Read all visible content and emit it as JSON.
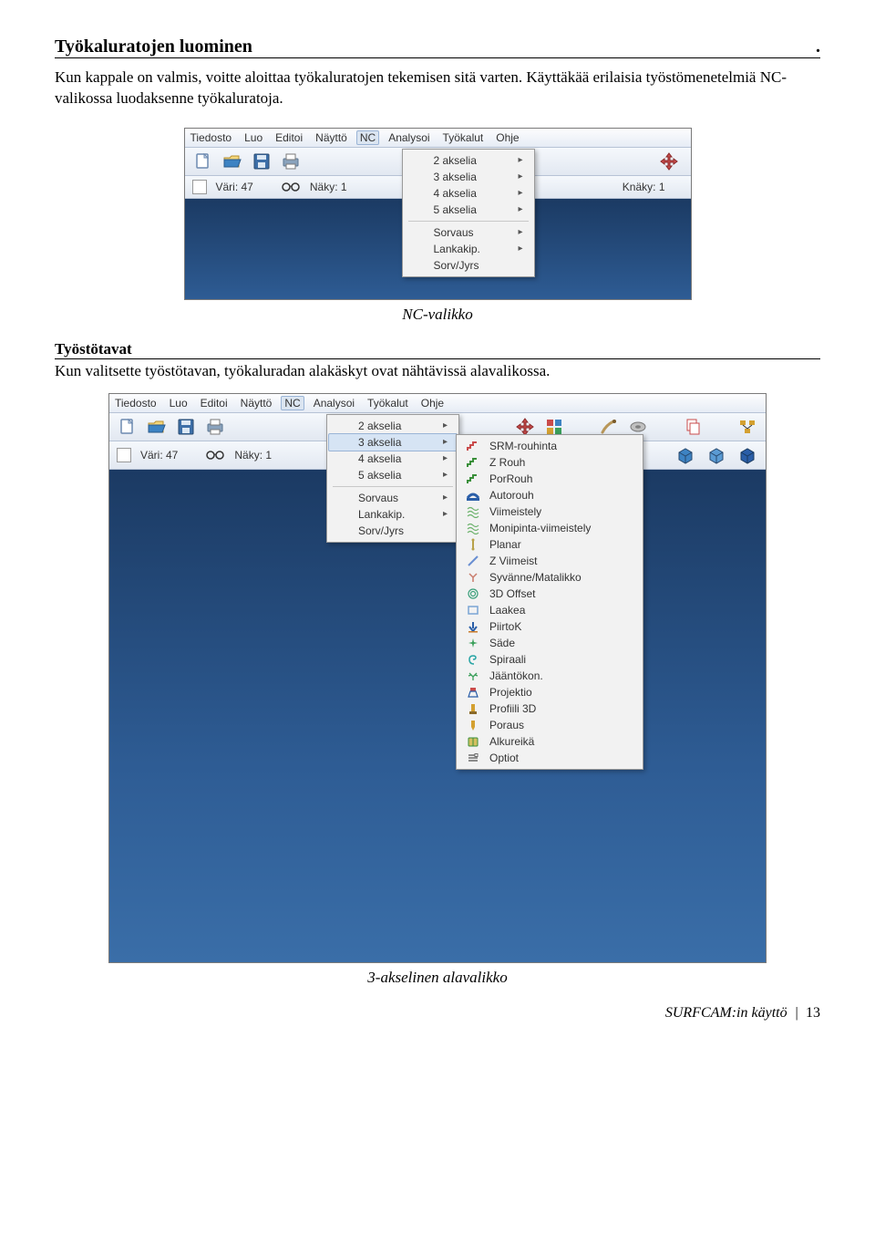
{
  "page": {
    "title": "Työkaluratojen luominen",
    "title_dot": ".",
    "body1": "Kun kappale on valmis, voitte aloittaa työkaluratojen tekemisen sitä varten. Käyttäkää erilaisia työstömenetelmiä NC-valikossa luodaksenne työkaluratoja.",
    "caption1": "NC-valikko",
    "subheading": "Työstötavat",
    "body2": "Kun valitsette työstötavan, työkaluradan alakäskyt ovat nähtävissä alavalikossa.",
    "caption2": "3-akselinen alavalikko",
    "footer_text": "SURFCAM:in käyttö",
    "footer_page": "13"
  },
  "ui": {
    "menubar": [
      "Tiedosto",
      "Luo",
      "Editoi",
      "Näyttö",
      "NC",
      "Analysoi",
      "Työkalut",
      "Ohje"
    ],
    "menu_active_index": 4,
    "toolbar2": {
      "vari_label": "Väri: 47",
      "naky_label": "Näky: 1",
      "knaky_label": "Knäky: 1"
    },
    "dropdown1": {
      "groups": [
        [
          "2 akselia",
          "3 akselia",
          "4 akselia",
          "5 akselia"
        ],
        [
          "Sorvaus",
          "Lankakip.",
          "Sorv/Jyrs"
        ]
      ],
      "arrow_items": [
        "2 akselia",
        "3 akselia",
        "4 akselia",
        "5 akselia",
        "Sorvaus",
        "Lankakip."
      ]
    },
    "dropdown2": {
      "groups": [
        [
          "2 akselia",
          "3 akselia",
          "4 akselia",
          "5 akselia"
        ],
        [
          "Sorvaus",
          "Lankakip.",
          "Sorv/Jyrs"
        ]
      ],
      "highlight": "3 akselia",
      "arrow_items": [
        "2 akselia",
        "3 akselia",
        "4 akselia",
        "5 akselia",
        "Sorvaus",
        "Lankakip."
      ]
    },
    "submenu": {
      "groups": [
        [
          {
            "label": "SRM-rouhinta",
            "icon": "steps",
            "color": "#c94b4b"
          },
          {
            "label": "Z Rouh",
            "icon": "steps",
            "color": "#3a8f3a"
          },
          {
            "label": "PorRouh",
            "icon": "steps",
            "color": "#3a8f3a"
          },
          {
            "label": "Autorouh",
            "icon": "arc",
            "color": "#2a5ea8"
          }
        ],
        [
          {
            "label": "Viimeistely",
            "icon": "wave",
            "color": "#6bb26b"
          },
          {
            "label": "Monipinta-viimeistely",
            "icon": "wave",
            "color": "#6bb26b"
          },
          {
            "label": "Planar",
            "icon": "vline",
            "color": "#b8a24a"
          },
          {
            "label": "Z Viimeist",
            "icon": "diag",
            "color": "#6a8fd2"
          },
          {
            "label": "Syvänne/Matalikko",
            "icon": "fork",
            "color": "#c97b6b"
          },
          {
            "label": "3D Offset",
            "icon": "rings",
            "color": "#3a9f7a"
          },
          {
            "label": "Laakea",
            "icon": "rect",
            "color": "#7aa5d4"
          },
          {
            "label": "PiirtoK",
            "icon": "downarrow",
            "color": "#2a5ea8"
          },
          {
            "label": "Säde",
            "icon": "star",
            "color": "#3a9f5a"
          },
          {
            "label": "Spiraali",
            "icon": "spiral",
            "color": "#2aa5a5"
          }
        ],
        [
          {
            "label": "Jääntökon.",
            "icon": "tree",
            "color": "#3a9f5a"
          }
        ],
        [
          {
            "label": "Projektio",
            "icon": "proj",
            "color": "#c94b4b"
          },
          {
            "label": "Profiili 3D",
            "icon": "prof",
            "color": "#d4a030"
          }
        ],
        [
          {
            "label": "Poraus",
            "icon": "drill",
            "color": "#d4a030"
          },
          {
            "label": "Alkureikä",
            "icon": "book",
            "color": "#3a8f3a"
          }
        ],
        [
          {
            "label": "Optiot",
            "icon": "opts",
            "color": "#6a6a6a"
          }
        ]
      ]
    }
  },
  "colors": {
    "canvas_top": "#1b3a63",
    "canvas_bottom": "#3a6ea8",
    "menu_highlight": "#d6e4f4"
  }
}
